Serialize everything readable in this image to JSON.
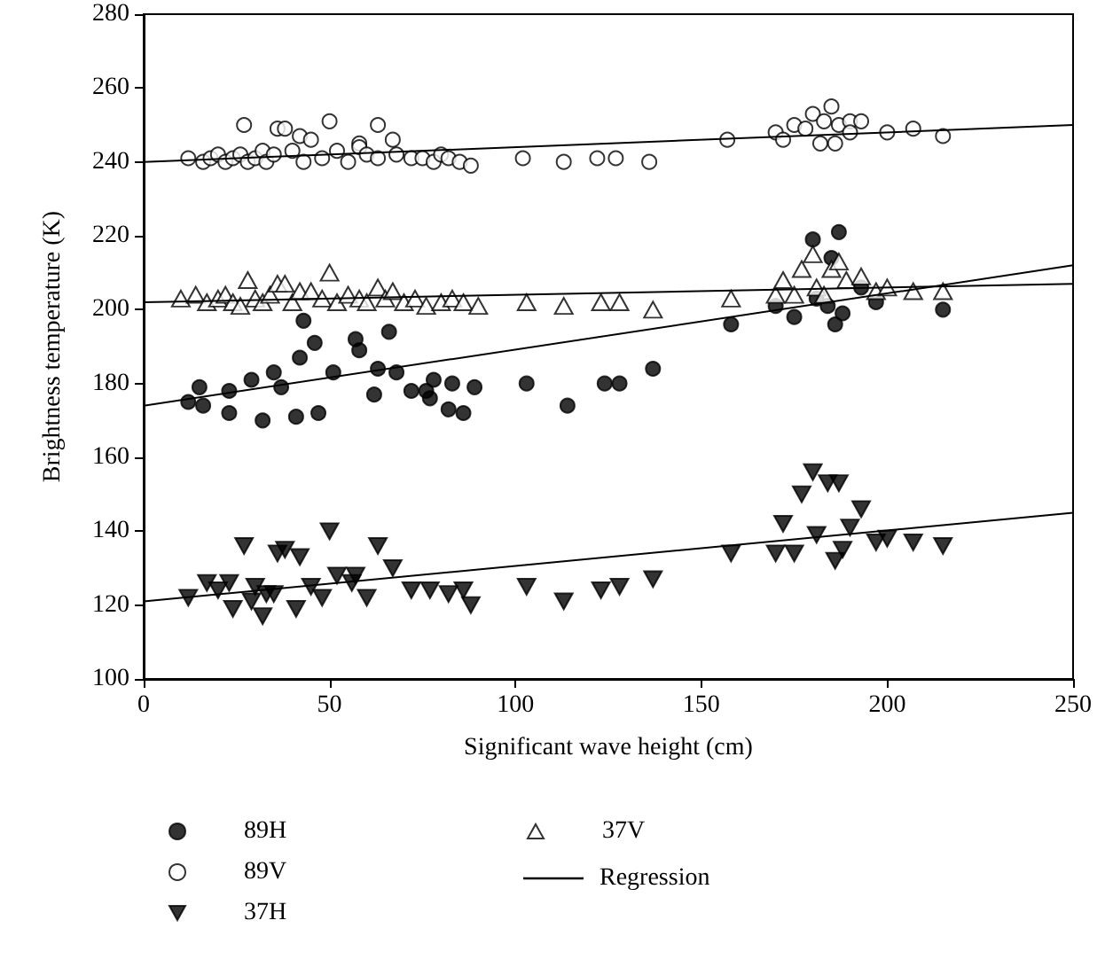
{
  "chart_data": {
    "type": "scatter",
    "xlabel": "Significant wave height (cm)",
    "ylabel": "Brightness temperature (K)",
    "xlim": [
      0,
      250
    ],
    "xticks": [
      0,
      50,
      100,
      150,
      200,
      250
    ],
    "ylim": [
      100,
      280
    ],
    "yticks": [
      100,
      120,
      140,
      160,
      180,
      200,
      220,
      240,
      260,
      280
    ],
    "grid": false,
    "legend": "bottom",
    "series": [
      {
        "name": "89H",
        "color": "#000000",
        "marker": "circle",
        "x": [
          12,
          15,
          16,
          23,
          23,
          29,
          32,
          35,
          37,
          41,
          42,
          43,
          46,
          47,
          51,
          57,
          58,
          62,
          63,
          66,
          68,
          72,
          76,
          77,
          78,
          82,
          83,
          86,
          89,
          103,
          114,
          124,
          128,
          137,
          158,
          170,
          175,
          180,
          181,
          184,
          185,
          186,
          187,
          188,
          193,
          197,
          215
        ],
        "values": [
          175,
          179,
          174,
          172,
          178,
          181,
          170,
          183,
          179,
          171,
          187,
          197,
          191,
          172,
          183,
          192,
          189,
          177,
          184,
          194,
          183,
          178,
          178,
          176,
          181,
          173,
          180,
          172,
          179,
          180,
          174,
          180,
          180,
          184,
          196,
          201,
          198,
          219,
          203,
          201,
          214,
          196,
          221,
          199,
          206,
          202,
          200
        ]
      },
      {
        "name": "89V",
        "color": "#ffffff",
        "marker": "circle",
        "x": [
          12,
          16,
          18,
          20,
          22,
          24,
          26,
          27,
          28,
          30,
          32,
          33,
          35,
          36,
          38,
          40,
          42,
          43,
          45,
          48,
          50,
          52,
          55,
          58,
          58,
          60,
          63,
          63,
          67,
          68,
          72,
          75,
          78,
          80,
          82,
          85,
          88,
          102,
          113,
          122,
          127,
          136,
          157,
          170,
          172,
          175,
          178,
          180,
          182,
          183,
          185,
          186,
          187,
          190,
          190,
          193,
          200,
          207,
          215
        ],
        "values": [
          241,
          240,
          241,
          242,
          240,
          241,
          242,
          250,
          240,
          241,
          243,
          240,
          242,
          249,
          249,
          243,
          247,
          240,
          246,
          241,
          251,
          243,
          240,
          245,
          244,
          242,
          250,
          241,
          246,
          242,
          241,
          241,
          240,
          242,
          241,
          240,
          239,
          241,
          240,
          241,
          241,
          240,
          246,
          248,
          246,
          250,
          249,
          253,
          245,
          251,
          255,
          245,
          250,
          251,
          248,
          251,
          248,
          249,
          247
        ]
      },
      {
        "name": "37H",
        "color": "#000000",
        "marker": "triangle-down",
        "x": [
          12,
          17,
          20,
          23,
          24,
          27,
          29,
          30,
          32,
          33,
          35,
          36,
          38,
          41,
          42,
          45,
          48,
          50,
          52,
          56,
          57,
          60,
          63,
          67,
          72,
          77,
          82,
          86,
          88,
          103,
          113,
          123,
          128,
          137,
          158,
          170,
          172,
          175,
          177,
          180,
          181,
          184,
          186,
          187,
          188,
          190,
          193,
          197,
          200,
          207,
          215
        ],
        "values": [
          122,
          126,
          124,
          126,
          119,
          136,
          121,
          125,
          117,
          123,
          123,
          134,
          135,
          119,
          133,
          125,
          122,
          140,
          128,
          126,
          128,
          122,
          136,
          130,
          124,
          124,
          123,
          124,
          120,
          125,
          121,
          124,
          125,
          127,
          134,
          134,
          142,
          134,
          150,
          156,
          139,
          153,
          132,
          153,
          135,
          141,
          146,
          137,
          138,
          137,
          136
        ]
      },
      {
        "name": "37V",
        "color": "#ffffff",
        "marker": "triangle",
        "x": [
          10,
          14,
          17,
          20,
          22,
          24,
          26,
          28,
          30,
          32,
          34,
          36,
          38,
          40,
          42,
          45,
          48,
          50,
          52,
          55,
          58,
          60,
          63,
          65,
          67,
          70,
          73,
          76,
          80,
          83,
          86,
          90,
          103,
          113,
          123,
          128,
          137,
          158,
          170,
          172,
          175,
          177,
          180,
          181,
          183,
          185,
          187,
          189,
          193,
          197,
          200,
          207,
          215
        ],
        "values": [
          203,
          204,
          202,
          203,
          204,
          202,
          201,
          208,
          203,
          202,
          204,
          207,
          207,
          202,
          205,
          205,
          203,
          210,
          202,
          204,
          203,
          202,
          206,
          203,
          205,
          202,
          203,
          201,
          202,
          203,
          202,
          201,
          202,
          201,
          202,
          202,
          200,
          203,
          204,
          208,
          204,
          211,
          215,
          206,
          204,
          211,
          213,
          208,
          209,
          205,
          206,
          205,
          205
        ]
      },
      {
        "name": "Regression",
        "type": "line",
        "color": "#000000",
        "marker": "none",
        "x": [
          0,
          250
        ],
        "values": [
          240,
          250
        ]
      },
      {
        "type": "line",
        "color": "#000000",
        "marker": "none",
        "x": [
          0,
          250
        ],
        "values": [
          202,
          207
        ]
      },
      {
        "type": "line",
        "color": "#000000",
        "marker": "none",
        "x": [
          0,
          250
        ],
        "values": [
          174,
          212
        ]
      },
      {
        "type": "line",
        "color": "#000000",
        "marker": "none",
        "x": [
          0,
          250
        ],
        "values": [
          121,
          145
        ]
      }
    ]
  }
}
